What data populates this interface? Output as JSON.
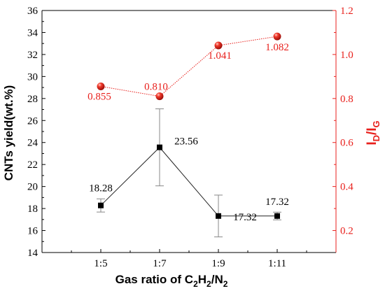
{
  "chart_data": {
    "type": "line",
    "categories": [
      "1:5",
      "1:7",
      "1:9",
      "1:11"
    ],
    "xlabel": {
      "prefix": "Gas ratio of C",
      "sub1": "2",
      "mid1": "H",
      "sub2": "2",
      "mid2": "/N",
      "sub3": "2"
    },
    "ylabel_left": "CNTs yield(wt.%)",
    "ylabel_right": {
      "main1": "I",
      "sub1": "D",
      "mid": "/I",
      "sub2": "G"
    },
    "left_axis": {
      "ylim": [
        14,
        36
      ],
      "ticks": [
        "14",
        "16",
        "18",
        "20",
        "22",
        "24",
        "26",
        "28",
        "30",
        "32",
        "34",
        "36"
      ]
    },
    "right_axis": {
      "ylim": [
        0.1,
        1.2
      ],
      "ticks": [
        "0.2",
        "0.4",
        "0.6",
        "0.8",
        "1.0",
        "1.2"
      ]
    },
    "series": [
      {
        "axis": "left",
        "values": [
          18.28,
          23.56,
          17.32,
          17.32
        ],
        "error": [
          0.6,
          3.5,
          1.9,
          0.35
        ],
        "labels": [
          "18.28",
          "23.56",
          "17.32",
          "17.32"
        ],
        "color": "#000000",
        "marker": "square"
      },
      {
        "axis": "right",
        "values": [
          0.855,
          0.81,
          1.041,
          1.082
        ],
        "labels": [
          "0.855",
          "0.810",
          "1.041",
          "1.082"
        ],
        "color": "#e8201c",
        "marker": "sphere"
      }
    ],
    "grid": false
  }
}
